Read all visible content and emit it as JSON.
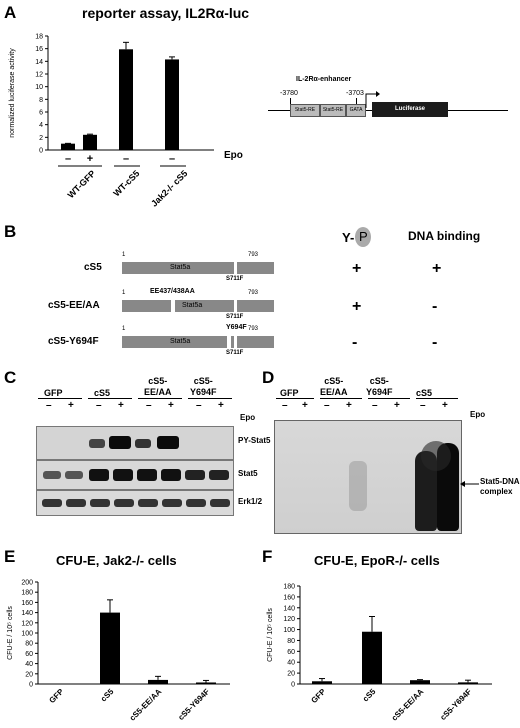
{
  "panelA": {
    "letter": "A",
    "title": "reporter assay, IL2Rα-luc",
    "ylabel": "normalized luciferase activity",
    "epo_label": "Epo",
    "signs": [
      "–",
      "+",
      "–",
      "–"
    ],
    "groups": [
      "WT-GFP",
      "WT-cS5",
      "Jak2-/- cS5"
    ],
    "diagram": {
      "title": "IL-2Rα-enhancer",
      "pos_left": "-3780",
      "pos_right": "-3703",
      "box1": "Stat5-RE",
      "box2": "Stat5-RE",
      "box3": "GATA",
      "luc": "Luciferase"
    }
  },
  "panelB": {
    "letter": "B",
    "col_y": "Y-",
    "col_p": "P",
    "col_dna": "DNA binding",
    "rows": [
      {
        "name": "cS5",
        "n_start": "1",
        "n_end": "793",
        "bar_label": "Stat5a",
        "mut_top": "",
        "mut_bottom": "S711F",
        "ptyr": "+",
        "dna": "+"
      },
      {
        "name": "cS5-EE/AA",
        "n_start": "1",
        "n_end": "793",
        "bar_label": "Stat5a",
        "mut_top": "EE437/438AA",
        "mut_bottom": "S711F",
        "ptyr": "+",
        "dna": "-"
      },
      {
        "name": "cS5-Y694F",
        "n_start": "1",
        "n_end": "793",
        "bar_label": "Stat5a",
        "mut_top": "Y694F",
        "mut_bottom": "S711F",
        "ptyr": "-",
        "dna": "-"
      }
    ]
  },
  "panelC": {
    "letter": "C",
    "groups": [
      "GFP",
      "cS5",
      "cS5-\nEE/AA",
      "cS5-\nY694F"
    ],
    "group1": "GFP",
    "group2": "cS5",
    "group3a": "cS5-",
    "group3b": "EE/AA",
    "group4a": "cS5-",
    "group4b": "Y694F",
    "epo_label": "Epo",
    "blots": [
      "PY-Stat5",
      "Stat5",
      "Erk1/2"
    ]
  },
  "panelD": {
    "letter": "D",
    "group1": "GFP",
    "group2a": "cS5-",
    "group2b": "EE/AA",
    "group3a": "cS5-",
    "group3b": "Y694F",
    "group4": "cS5",
    "epo_label": "Epo",
    "arrow_label_1": "Stat5-DNA",
    "arrow_label_2": "complex"
  },
  "panelE": {
    "letter": "E",
    "title": "CFU-E, Jak2-/- cells"
  },
  "panelF": {
    "letter": "F",
    "title": "CFU-E, EpoR-/- cells"
  },
  "chart_data": [
    {
      "type": "bar",
      "panel": "A",
      "categories": [
        "WT-GFP –",
        "WT-GFP +",
        "WT-cS5 –",
        "Jak2-/- cS5 –"
      ],
      "values": [
        1.0,
        2.4,
        15.9,
        14.3
      ],
      "errors": [
        0.05,
        0.1,
        1.1,
        0.4
      ],
      "ylabel": "normalized luciferase activity",
      "ylim": [
        0,
        18
      ],
      "yticks": [
        0,
        2,
        4,
        6,
        8,
        10,
        12,
        14,
        16,
        18
      ]
    },
    {
      "type": "bar",
      "panel": "E",
      "categories": [
        "GFP",
        "cS5",
        "cS5-EE/AA",
        "cS5-Y694F"
      ],
      "values": [
        0,
        140,
        8,
        3
      ],
      "errors": [
        0,
        25,
        7,
        4
      ],
      "title": "CFU-E, Jak2-/- cells",
      "ylabel": "CFU-E / 10⁵ cells",
      "ylim": [
        0,
        200
      ],
      "yticks": [
        0,
        20,
        40,
        60,
        80,
        100,
        120,
        140,
        160,
        180,
        200
      ]
    },
    {
      "type": "bar",
      "panel": "F",
      "categories": [
        "GFP",
        "cS5",
        "cS5-EE/AA",
        "cS5-Y694F"
      ],
      "values": [
        5,
        96,
        7,
        3
      ],
      "errors": [
        5,
        28,
        1,
        4
      ],
      "title": "CFU-E, EpoR-/- cells",
      "ylabel": "CFU-E / 10⁵ cells",
      "ylim": [
        0,
        180
      ],
      "yticks": [
        0,
        20,
        40,
        60,
        80,
        100,
        120,
        140,
        160,
        180
      ]
    }
  ]
}
